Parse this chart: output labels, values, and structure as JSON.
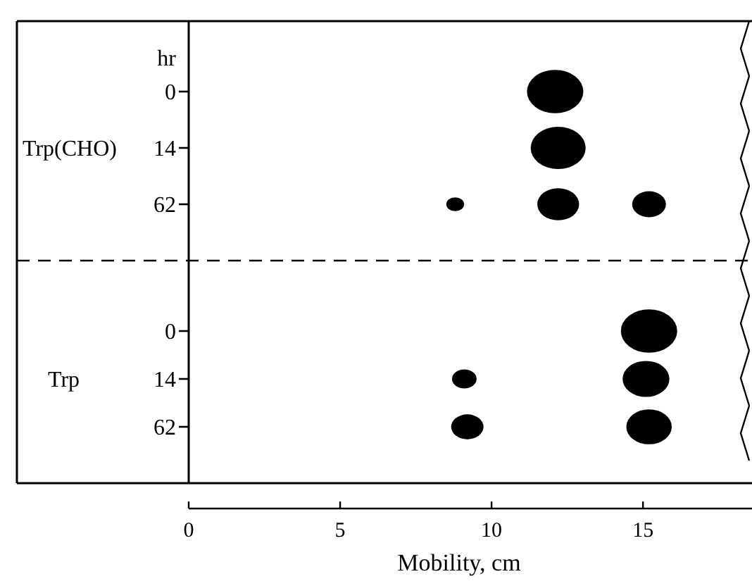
{
  "chart_data": [
    {
      "type": "bubble",
      "orientation": "horizontal",
      "ylabel": "Trp(CHO)",
      "annotations": [
        "hr"
      ],
      "categories": [
        "0",
        "14",
        "62"
      ],
      "xlim": [
        0,
        18.6
      ],
      "xticks": [
        0,
        5,
        10,
        15
      ],
      "tick_labels": "y",
      "series": [
        {
          "color": "#000000",
          "values": [
            null,
            null,
            8.8
          ],
          "sizes": [
            null,
            null,
            0.1
          ]
        },
        {
          "color": "#000000",
          "values": [
            12.1,
            12.2,
            12.2
          ],
          "sizes": [
            1,
            0.95,
            0.55
          ]
        },
        {
          "color": "#000000",
          "values": [
            null,
            null,
            15.2
          ],
          "sizes": [
            null,
            null,
            0.36
          ]
        }
      ]
    },
    {
      "type": "bubble",
      "orientation": "horizontal",
      "ylabel": "Trp",
      "xlabel": "Mobility, cm",
      "categories": [
        "0",
        "14",
        "62"
      ],
      "xlim": [
        0,
        18.6
      ],
      "xticks": [
        0,
        5,
        10,
        15
      ],
      "series": [
        {
          "color": "#000000",
          "values": [
            null,
            9.1,
            9.2
          ],
          "sizes": [
            null,
            0.19,
            0.33
          ]
        },
        {
          "color": "#000000",
          "values": [
            15.2,
            15.1,
            15.2
          ],
          "sizes": [
            1,
            0.69,
            0.65
          ]
        }
      ]
    }
  ]
}
